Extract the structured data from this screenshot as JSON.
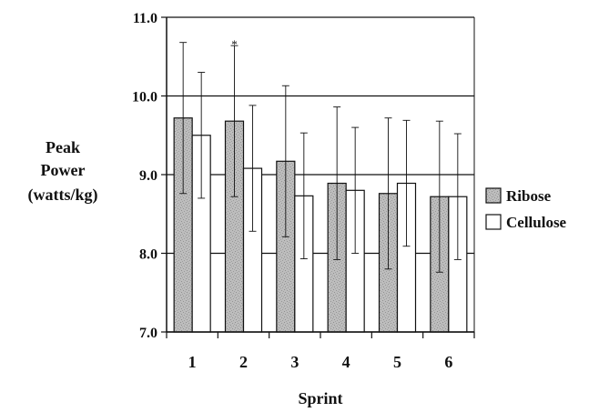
{
  "chart_data": {
    "type": "bar",
    "title": "",
    "xlabel": "Sprint",
    "ylabel": "Peak Power (watts/kg)",
    "ylabel_lines": [
      "Peak",
      "Power",
      "(watts/kg)"
    ],
    "ylim": [
      7.0,
      11.0
    ],
    "yticks": [
      7.0,
      8.0,
      9.0,
      10.0,
      11.0
    ],
    "ytick_labels": [
      "7.0",
      "8.0",
      "9.0",
      "10.0",
      "11.0"
    ],
    "categories": [
      "1",
      "2",
      "3",
      "4",
      "5",
      "6"
    ],
    "grid": true,
    "legend_position": "right",
    "series": [
      {
        "name": "Ribose",
        "values": [
          9.72,
          9.68,
          9.17,
          8.89,
          8.76,
          8.72
        ],
        "error_upper": [
          10.68,
          10.64,
          10.13,
          9.86,
          9.72,
          9.68
        ],
        "error_lower": [
          8.76,
          8.72,
          8.21,
          7.92,
          7.8,
          7.76
        ],
        "fill": "#b8b8b8",
        "pattern": "speckled-gray"
      },
      {
        "name": "Cellulose",
        "values": [
          9.5,
          9.08,
          8.73,
          8.8,
          8.89,
          8.72
        ],
        "error_upper": [
          10.3,
          9.88,
          9.53,
          9.6,
          9.69,
          9.52
        ],
        "error_lower": [
          8.7,
          8.28,
          7.93,
          8.0,
          8.09,
          7.92
        ],
        "fill": "#ffffff",
        "pattern": "none"
      }
    ],
    "annotations": [
      {
        "text": "*",
        "category": "2",
        "series": "Ribose",
        "value": 10.72
      }
    ],
    "colors": {
      "axis": "#111111",
      "grid": "#111111",
      "bar_outline": "#111111",
      "error_bar": "#111111"
    }
  }
}
